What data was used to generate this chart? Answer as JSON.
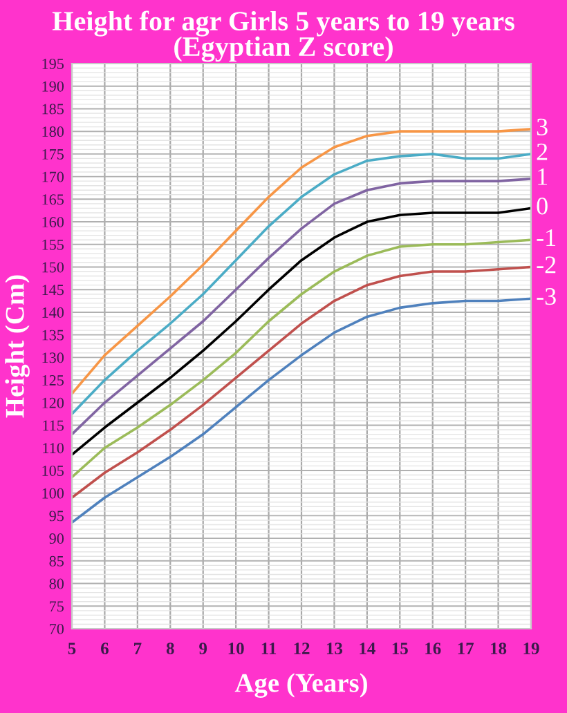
{
  "chart_data": {
    "type": "line",
    "title": "Height for agr Girls 5 years to 19 years\n(Egyptian Z score)",
    "xlabel": "Age (Years)",
    "ylabel": "Height (Cm)",
    "x": [
      5,
      6,
      7,
      8,
      9,
      10,
      11,
      12,
      13,
      14,
      15,
      16,
      17,
      18,
      19
    ],
    "xlim": [
      5,
      19
    ],
    "xticks": [
      5,
      6,
      7,
      8,
      9,
      10,
      11,
      12,
      13,
      14,
      15,
      16,
      17,
      18,
      19
    ],
    "ylim": [
      70,
      195
    ],
    "yticks": [
      70,
      75,
      80,
      85,
      90,
      95,
      100,
      105,
      110,
      115,
      120,
      125,
      130,
      135,
      140,
      145,
      150,
      155,
      160,
      165,
      170,
      175,
      180,
      185,
      190,
      195
    ],
    "grid": true,
    "legend": false,
    "marker": "none",
    "line_style": "solid",
    "series": [
      {
        "name": "3",
        "color": "#f79646",
        "values": [
          122,
          130.5,
          137,
          143.5,
          150.5,
          158,
          165.5,
          172,
          176.5,
          179,
          180,
          180,
          180,
          180,
          180.5
        ]
      },
      {
        "name": "2",
        "color": "#4bacc6",
        "values": [
          117.5,
          125,
          131.5,
          137.5,
          144,
          151.5,
          159,
          165.5,
          170.5,
          173.5,
          174.5,
          175,
          174,
          174,
          175
        ]
      },
      {
        "name": "1",
        "color": "#8064a2",
        "values": [
          113,
          120,
          126,
          132,
          138,
          145,
          152,
          158.5,
          164,
          167,
          168.5,
          169,
          169,
          169,
          169.5
        ]
      },
      {
        "name": "0",
        "color": "#000000",
        "values": [
          108.5,
          114.5,
          120,
          125.5,
          131.5,
          138,
          145,
          151.5,
          156.5,
          160,
          161.5,
          162,
          162,
          162,
          163
        ]
      },
      {
        "name": "-1",
        "color": "#9bbb59",
        "values": [
          103.5,
          110,
          114.5,
          119.5,
          125,
          131,
          138,
          144,
          149,
          152.5,
          154.5,
          155,
          155,
          155.5,
          156
        ]
      },
      {
        "name": "-2",
        "color": "#c0504d",
        "values": [
          99,
          104.5,
          109,
          114,
          119.5,
          125.5,
          131.5,
          137.5,
          142.5,
          146,
          148,
          149,
          149,
          149.5,
          150
        ]
      },
      {
        "name": "-3",
        "color": "#4f81bd",
        "values": [
          93.5,
          99,
          103.5,
          108,
          113,
          119,
          125,
          130.5,
          135.5,
          139,
          141,
          142,
          142.5,
          142.5,
          143
        ]
      }
    ]
  }
}
